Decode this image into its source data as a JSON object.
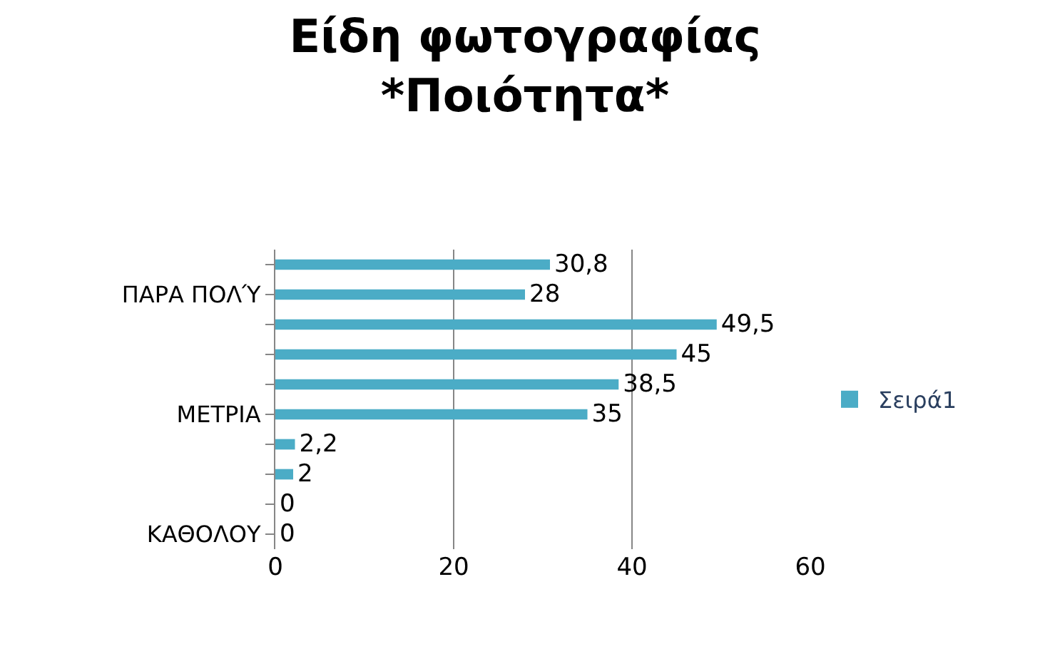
{
  "chart_data": {
    "type": "bar",
    "orientation": "horizontal",
    "title": "Είδη φωτογραφίας\n*Ποιότητα*",
    "categories": [
      null,
      "ΠΑΡΑ ΠΟΛΎ",
      null,
      null,
      null,
      "ΜΕΤΡΙΑ",
      null,
      null,
      null,
      "ΚΑΘΟΛΟΥ"
    ],
    "series": [
      {
        "name": "Σειρά1",
        "color": "#4bacc6",
        "values": [
          30.8,
          28,
          49.5,
          45,
          38.5,
          35,
          2.2,
          2,
          0,
          0
        ],
        "value_labels": [
          "30,8",
          "28",
          "49,5",
          "45",
          "38,5",
          "35",
          "2,2",
          "2",
          "0",
          "0"
        ]
      }
    ],
    "xlim": [
      0,
      60
    ],
    "xticks": [
      0,
      20,
      40,
      60
    ],
    "grid": "x",
    "legend": "right"
  }
}
